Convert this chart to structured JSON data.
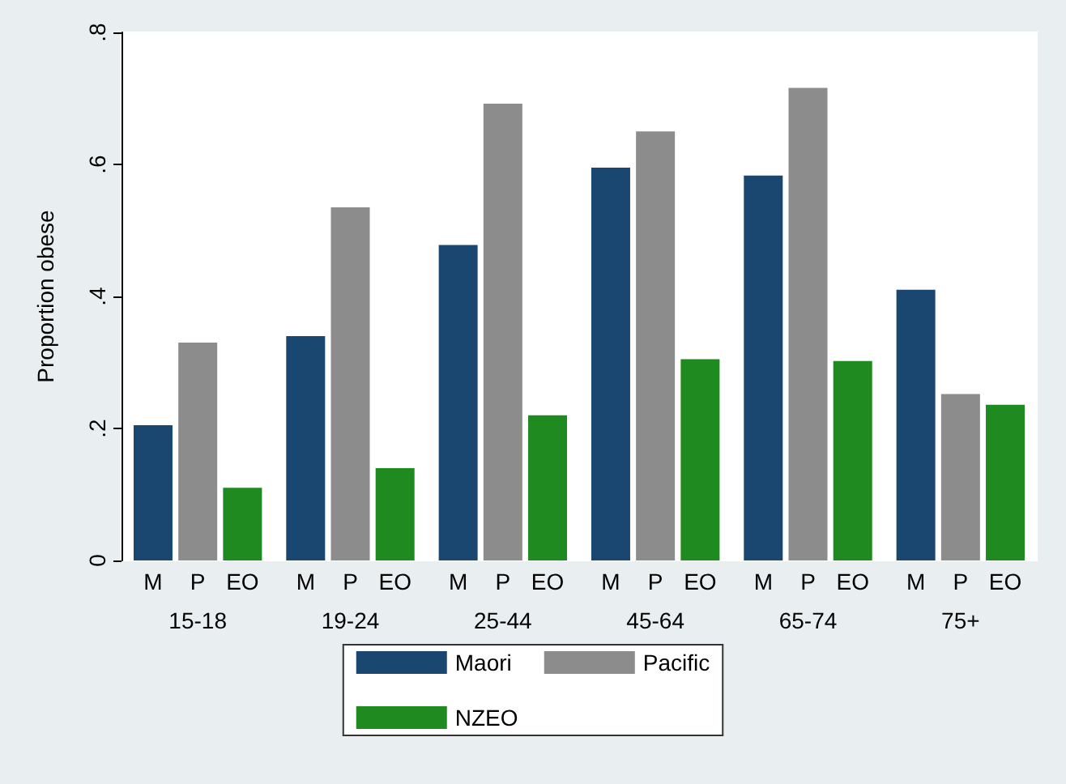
{
  "chart_data": {
    "type": "bar",
    "ylabel": "Proportion obese",
    "categories": [
      "15-18",
      "19-24",
      "25-44",
      "45-64",
      "65-74",
      "75+"
    ],
    "series": [
      {
        "name": "Maori",
        "color": "#1a476f",
        "values": [
          0.205,
          0.34,
          0.478,
          0.595,
          0.583,
          0.41
        ]
      },
      {
        "name": "Pacific",
        "color": "#8c8c8c",
        "values": [
          0.33,
          0.535,
          0.692,
          0.65,
          0.716,
          0.252
        ]
      },
      {
        "name": "NZEO",
        "color": "#1f8a1f",
        "values": [
          0.11,
          0.14,
          0.22,
          0.305,
          0.302,
          0.236
        ]
      }
    ],
    "ylim": [
      0,
      0.8
    ],
    "yticks": [
      {
        "value": 0,
        "label": "0"
      },
      {
        "value": 0.2,
        "label": ".2"
      },
      {
        "value": 0.4,
        "label": ".4"
      },
      {
        "value": 0.6,
        "label": ".6"
      },
      {
        "value": 0.8,
        "label": ".8"
      }
    ],
    "grid": false,
    "legend": "bottom",
    "annotations": [
      "M",
      "P",
      "EO",
      "M",
      "P",
      "EO",
      "M",
      "P",
      "EO",
      "M",
      "P",
      "EO",
      "M",
      "P",
      "EO",
      "M",
      "P",
      "EO"
    ]
  }
}
